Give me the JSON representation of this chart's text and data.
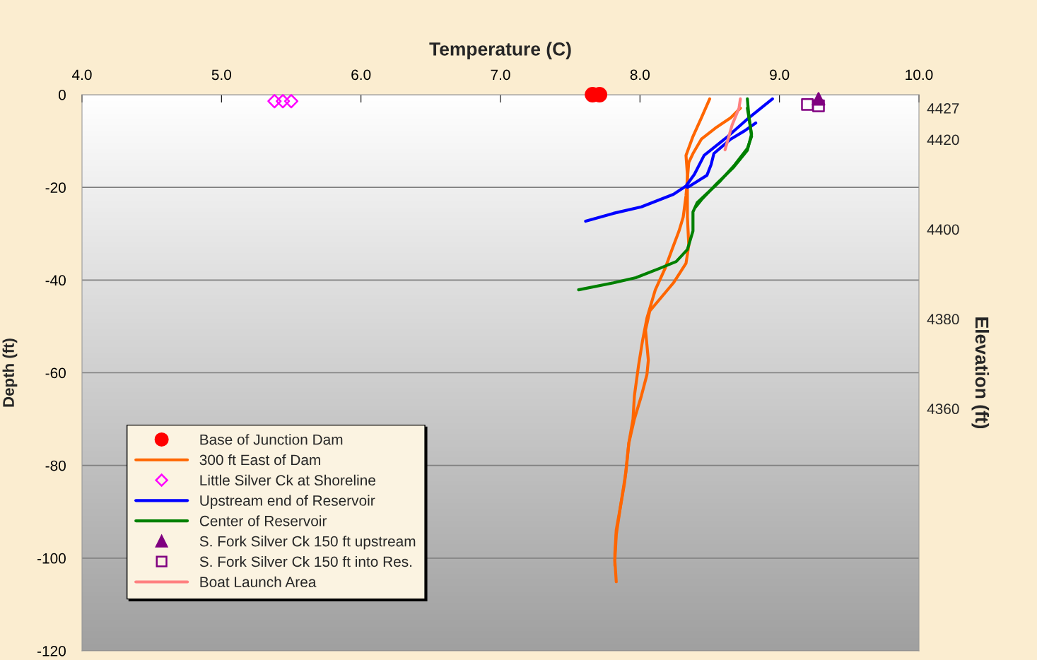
{
  "chart_data": {
    "type": "line",
    "xlabel": "Temperature (C)",
    "ylabel": "Depth (ft)",
    "y2label": "Elevation (ft)",
    "xlim": [
      4,
      10
    ],
    "xticks": [
      {
        "value": 4,
        "label": "4.0"
      },
      {
        "value": 5,
        "label": "5.0"
      },
      {
        "value": 6,
        "label": "6.0"
      },
      {
        "value": 7,
        "label": "7.0"
      },
      {
        "value": 8,
        "label": "8.0"
      },
      {
        "value": 9,
        "label": "9.0"
      },
      {
        "value": 10,
        "label": "10.0"
      }
    ],
    "ylim": [
      -120,
      0
    ],
    "yticks": [
      -120,
      -100,
      -80,
      -60,
      -40,
      -20,
      0
    ],
    "y2lim": [
      4306,
      4430
    ],
    "y2ticks": [
      4360,
      4380,
      4400,
      4420,
      4427
    ],
    "grid": "y",
    "legend": "bottom left",
    "line_style": "solid",
    "series": [
      {
        "name": "Base of Junction Dam",
        "type": "scatter",
        "marker": "circle",
        "color": "#ff0000",
        "x": [
          7.66,
          7.71
        ],
        "values": [
          0,
          0
        ]
      },
      {
        "name": "300 ft East of Dam",
        "marker": "none",
        "color": "#ff6600",
        "x": [
          8.5,
          8.44,
          8.38,
          8.33,
          8.34,
          8.34,
          8.34,
          8.35,
          8.33,
          8.24,
          8.07,
          8.04,
          8.06,
          8.05,
          8.01,
          7.96,
          7.92,
          7.9,
          7.86,
          7.83,
          7.82,
          7.83
        ],
        "values": [
          -0.9,
          -5.0,
          -9.0,
          -13.1,
          -17.2,
          -20.7,
          -26.4,
          -32.5,
          -36.4,
          -40.6,
          -46.7,
          -50.8,
          -57.3,
          -60.4,
          -65.0,
          -70.0,
          -75.2,
          -81.3,
          -88.9,
          -95.0,
          -100.5,
          -105.1
        ]
      },
      {
        "marker": "none",
        "color": "#ff6600",
        "x": [
          8.72,
          8.65,
          8.55,
          8.44,
          8.38,
          8.35,
          8.34,
          8.33,
          8.31,
          8.28,
          8.23,
          8.18,
          8.11,
          8.05,
          8.02,
          7.99,
          7.96,
          7.95,
          7.92,
          7.89,
          7.86,
          7.83,
          7.82,
          7.82
        ],
        "values": [
          -2.9,
          -5.0,
          -7.0,
          -9.6,
          -12.7,
          -14.6,
          -18.1,
          -21.8,
          -26.4,
          -29.4,
          -33.4,
          -37.5,
          -42.1,
          -48.2,
          -52.8,
          -58.4,
          -65.0,
          -70.0,
          -75.2,
          -83.7,
          -88.9,
          -93.9,
          -99.0,
          -101.6
        ]
      },
      {
        "name": "Little Silver Ck at Shoreline",
        "type": "scatter",
        "marker": "diamond",
        "color": "#ff00ff",
        "x": [
          5.38,
          5.44,
          5.5
        ],
        "values": [
          -1.4,
          -1.4,
          -1.4
        ]
      },
      {
        "name": "Upstream end of Reservoir",
        "marker": "none",
        "color": "#0000ff",
        "x": [
          8.95,
          8.78,
          8.63,
          8.46,
          8.39,
          8.33,
          8.24,
          8.01,
          7.81,
          7.61
        ],
        "values": [
          -0.9,
          -5.0,
          -9.0,
          -13.1,
          -17.2,
          -19.7,
          -21.5,
          -24.2,
          -25.6,
          -27.3
        ]
      },
      {
        "marker": "none",
        "color": "#0000ff",
        "x": [
          8.83,
          8.75,
          8.65,
          8.53,
          8.51,
          8.48,
          8.4,
          8.34
        ],
        "values": [
          -6.1,
          -7.8,
          -9.6,
          -12.7,
          -15.1,
          -17.4,
          -18.9,
          -20.0
        ]
      },
      {
        "name": "Center of Reservoir",
        "marker": "none",
        "color": "#008000",
        "x": [
          8.77,
          8.78,
          8.8,
          8.77,
          8.68,
          8.57,
          8.41,
          8.38,
          8.38,
          8.34,
          8.26,
          8.14,
          7.97,
          7.81,
          7.56
        ],
        "values": [
          -0.9,
          -4.4,
          -9.0,
          -11.6,
          -15.1,
          -18.8,
          -23.3,
          -25.3,
          -29.4,
          -33.4,
          -36.0,
          -37.5,
          -39.5,
          -40.6,
          -42.1
        ]
      },
      {
        "marker": "none",
        "color": "#008000",
        "x": [
          8.77,
          8.8,
          8.77,
          8.67,
          8.55,
          8.44,
          8.4
        ],
        "values": [
          -2.9,
          -8.5,
          -12.0,
          -15.7,
          -19.2,
          -22.7,
          -24.2
        ]
      },
      {
        "name": "S. Fork Silver Ck 150 ft upstream",
        "type": "scatter",
        "marker": "triangle",
        "color": "#800080",
        "x": [
          9.28
        ],
        "values": [
          -0.9
        ]
      },
      {
        "name": "S. Fork Silver Ck 150 ft into Res.",
        "type": "scatter",
        "marker": "square",
        "color": "#800080",
        "x": [
          9.2,
          9.28
        ],
        "values": [
          -2.1,
          -2.4
        ]
      },
      {
        "name": "Boat Launch Area",
        "marker": "none",
        "color": "#ff8080",
        "x": [
          8.72,
          8.71,
          8.66,
          8.61
        ],
        "values": [
          -0.9,
          -2.9,
          -6.6,
          -11.9
        ]
      }
    ]
  }
}
